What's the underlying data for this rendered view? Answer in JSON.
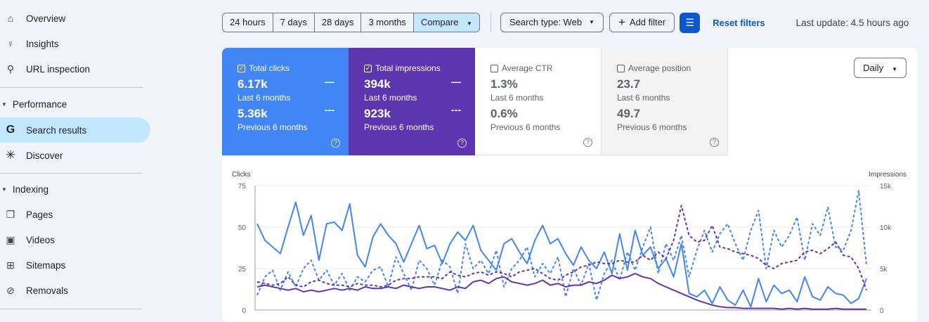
{
  "sidebar": {
    "items_top": [
      {
        "label": "Overview",
        "icon": "home-icon"
      },
      {
        "label": "Insights",
        "icon": "lightbulb-icon"
      },
      {
        "label": "URL inspection",
        "icon": "search-icon"
      }
    ],
    "performance": {
      "label": "Performance",
      "items": [
        {
          "label": "Search results",
          "icon": "google-g-icon",
          "active": true
        },
        {
          "label": "Discover",
          "icon": "asterisk-icon"
        }
      ]
    },
    "indexing": {
      "label": "Indexing",
      "items": [
        {
          "label": "Pages",
          "icon": "pages-icon"
        },
        {
          "label": "Videos",
          "icon": "video-icon"
        },
        {
          "label": "Sitemaps",
          "icon": "sitemap-icon"
        },
        {
          "label": "Removals",
          "icon": "eye-off-icon"
        }
      ]
    }
  },
  "toolbar": {
    "ranges": [
      "24 hours",
      "7 days",
      "28 days",
      "3 months"
    ],
    "compare": "Compare",
    "search_type": "Search type: Web",
    "add_filter": "Add filter",
    "reset": "Reset filters",
    "last_update": "Last update: 4.5 hours ago"
  },
  "metrics": [
    {
      "label": "Total clicks",
      "checked": true,
      "v1": "6.17k",
      "l1": "Last 6 months",
      "v2": "5.36k",
      "l2": "Previous 6 months",
      "color": "#4285f4"
    },
    {
      "label": "Total impressions",
      "checked": true,
      "v1": "394k",
      "l1": "Last 6 months",
      "v2": "923k",
      "l2": "Previous 6 months",
      "color": "#5e35b1"
    },
    {
      "label": "Average CTR",
      "checked": false,
      "v1": "1.3%",
      "l1": "Last 6 months",
      "v2": "0.6%",
      "l2": "Previous 6 months"
    },
    {
      "label": "Average position",
      "checked": false,
      "v1": "23.7",
      "l1": "Last 6 months",
      "v2": "49.7",
      "l2": "Previous 6 months"
    }
  ],
  "granularity": "Daily",
  "chart_data": {
    "type": "line",
    "y_left": {
      "label": "Clicks",
      "ticks": [
        "0",
        "25",
        "50",
        "75"
      ],
      "range": [
        0,
        75
      ]
    },
    "y_right": {
      "label": "Impressions",
      "ticks": [
        "0",
        "5k",
        "10k",
        "15k"
      ],
      "range": [
        0,
        15000
      ]
    },
    "series": [
      {
        "name": "Clicks (Last 6 months)",
        "axis": "left",
        "style": "solid",
        "color": "#4285f4",
        "values": [
          52,
          42,
          38,
          34,
          50,
          65,
          45,
          57,
          30,
          52,
          53,
          48,
          64,
          33,
          26,
          44,
          52,
          45,
          40,
          29,
          40,
          51,
          37,
          39,
          28,
          40,
          47,
          42,
          51,
          36,
          30,
          24,
          40,
          43,
          35,
          28,
          42,
          51,
          40,
          43,
          34,
          27,
          38,
          30,
          25,
          35,
          22,
          46,
          24,
          48,
          33,
          38,
          25,
          31,
          20,
          40,
          10,
          8,
          12,
          4,
          14,
          6,
          3,
          12,
          2,
          19,
          5,
          15,
          10,
          12,
          5,
          20,
          8,
          6,
          14,
          10,
          9,
          4,
          7,
          19
        ]
      },
      {
        "name": "Clicks (Previous 6 months)",
        "axis": "left",
        "style": "dashed",
        "color": "#4285f4",
        "values": [
          9,
          20,
          24,
          12,
          23,
          14,
          25,
          30,
          18,
          24,
          15,
          22,
          12,
          20,
          17,
          24,
          26,
          14,
          32,
          22,
          12,
          30,
          25,
          15,
          30,
          26,
          10,
          40,
          25,
          30,
          22,
          36,
          14,
          25,
          30,
          38,
          20,
          28,
          22,
          32,
          8,
          25,
          15,
          28,
          6,
          22,
          30,
          18,
          35,
          24,
          38,
          50,
          22,
          40,
          30,
          45,
          20,
          36,
          48,
          35,
          46,
          52,
          40,
          30,
          48,
          60,
          25,
          48,
          38,
          45,
          56,
          30,
          52,
          45,
          62,
          38,
          36,
          48,
          72,
          27
        ]
      },
      {
        "name": "Impressions (Last 6 months)",
        "axis": "right",
        "style": "solid",
        "color": "#5e35b1",
        "values": [
          2800,
          3000,
          2800,
          2600,
          2400,
          2600,
          2200,
          2400,
          2200,
          2400,
          2600,
          2400,
          2600,
          2400,
          2800,
          2600,
          2600,
          2800,
          2600,
          3000,
          2800,
          2600,
          2800,
          2800,
          2600,
          2400,
          2800,
          2600,
          3400,
          3600,
          3200,
          3800,
          4000,
          3400,
          3200,
          3000,
          3200,
          3600,
          3000,
          3200,
          2800,
          3000,
          3000,
          3400,
          3200,
          3600,
          4200,
          3800,
          4000,
          4400,
          4000,
          3800,
          3200,
          2800,
          2400,
          2000,
          1600,
          1200,
          900,
          600,
          400,
          300,
          300,
          200,
          200,
          200,
          200,
          200,
          100,
          200,
          100,
          200,
          100,
          100,
          100,
          200,
          100,
          100,
          100,
          100
        ]
      },
      {
        "name": "Impressions (Previous 6 months)",
        "axis": "right",
        "style": "dashed",
        "color": "#5e35b1",
        "values": [
          3400,
          3200,
          3000,
          3200,
          4000,
          3000,
          2800,
          3400,
          3600,
          3200,
          3000,
          3000,
          2800,
          3200,
          3000,
          3000,
          2800,
          3000,
          3600,
          3800,
          3800,
          4000,
          4000,
          4000,
          3800,
          4600,
          4200,
          4000,
          4400,
          4600,
          4200,
          4600,
          4400,
          4000,
          4600,
          4800,
          5000,
          4400,
          3800,
          3600,
          4200,
          4600,
          5200,
          5400,
          5800,
          5600,
          5600,
          6000,
          5800,
          5800,
          6600,
          6000,
          7000,
          6200,
          8400,
          12600,
          9000,
          8200,
          8400,
          10200,
          7600,
          7400,
          7000,
          6800,
          6600,
          6200,
          5400,
          5000,
          5600,
          5800,
          6000,
          7000,
          7200,
          6800,
          7400,
          8200,
          6600,
          6400,
          5000,
          2400
        ]
      }
    ]
  }
}
